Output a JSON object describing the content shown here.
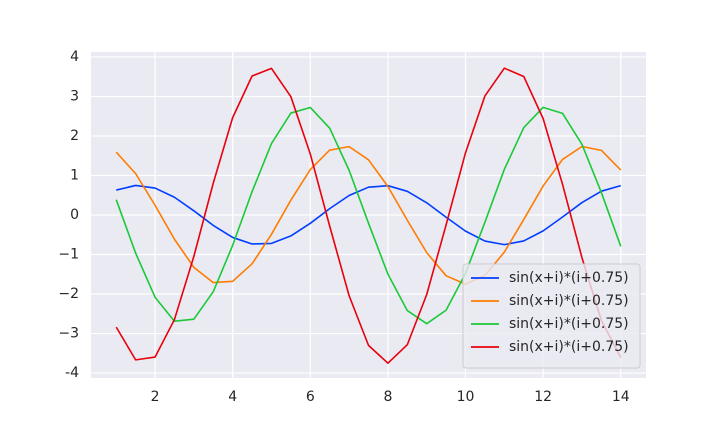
{
  "chart_data": {
    "type": "line",
    "x": [
      1,
      1.5,
      2,
      2.5,
      3,
      3.5,
      4,
      4.5,
      5,
      5.5,
      6,
      6.5,
      7,
      7.5,
      8,
      8.5,
      9,
      9.5,
      10,
      10.5,
      11,
      11.5,
      12,
      12.5,
      13,
      13.5,
      14
    ],
    "series": [
      {
        "name": "sin(x+i)*(i+0.75)",
        "color": "#023eff",
        "values": [
          0.631,
          0.748,
          0.682,
          0.449,
          0.106,
          -0.263,
          -0.568,
          -0.733,
          -0.719,
          -0.529,
          -0.21,
          0.161,
          0.493,
          0.704,
          0.742,
          0.599,
          0.309,
          -0.056,
          -0.408,
          -0.66,
          -0.75,
          -0.657,
          -0.402,
          -0.05,
          0.315,
          0.603,
          0.743
        ]
      },
      {
        "name": "sin(x+i)*(i+0.75)",
        "color": "#ff7c00",
        "values": [
          1.591,
          1.047,
          0.247,
          -0.614,
          -1.324,
          -1.711,
          -1.678,
          -1.235,
          -0.489,
          0.376,
          1.15,
          1.642,
          1.731,
          1.397,
          0.721,
          -0.132,
          -0.952,
          -1.539,
          -1.75,
          -1.532,
          -0.939,
          -0.116,
          0.735,
          1.407,
          1.734,
          1.636,
          1.138
        ]
      },
      {
        "name": "sin(x+i)*(i+0.75)",
        "color": "#1ac938",
        "values": [
          0.388,
          -0.965,
          -2.081,
          -2.688,
          -2.637,
          -1.94,
          -0.768,
          0.592,
          1.807,
          2.58,
          2.721,
          2.196,
          1.133,
          -0.207,
          -1.496,
          -2.419,
          -2.75,
          -2.408,
          -1.476,
          -0.182,
          1.156,
          2.21,
          2.724,
          2.571,
          1.788,
          0.568,
          -0.792
        ]
      },
      {
        "name": "sin(x+i)*(i+0.75)",
        "color": "#e8000b",
        "values": [
          -2.838,
          -3.666,
          -3.596,
          -2.646,
          -1.048,
          0.807,
          2.464,
          3.518,
          3.71,
          2.994,
          1.545,
          -0.282,
          -2.04,
          -3.299,
          -3.75,
          -3.283,
          -2.012,
          -0.249,
          1.576,
          3.014,
          3.715,
          3.506,
          2.439,
          0.774,
          -1.08,
          -2.669,
          -3.605
        ]
      }
    ],
    "xlim": [
      0.35,
      14.65
    ],
    "ylim": [
      -4.125,
      4.125
    ],
    "xticks": [
      2,
      4,
      6,
      8,
      10,
      12,
      14
    ],
    "yticks": [
      -4,
      {
        "value": -3,
        "label": "−3"
      },
      {
        "value": -2,
        "label": "−2"
      },
      {
        "value": -1,
        "label": "−1"
      },
      0,
      1,
      2,
      3,
      4
    ],
    "grid": true,
    "legend": "lower right"
  }
}
